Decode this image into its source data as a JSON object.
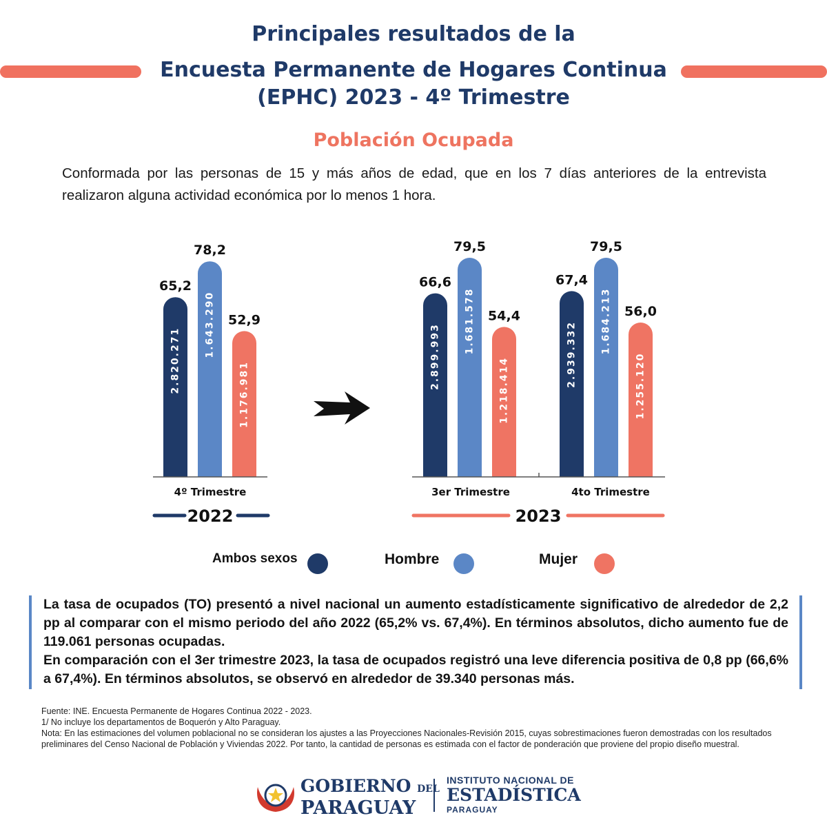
{
  "header": {
    "line1": "Principales resultados de la",
    "line2": "Encuesta Permanente de Hogares Continua",
    "line3": "(EPHC) 2023 - 4º Trimestre",
    "subtitle": "Población Ocupada",
    "intro": "Conformada por las personas de 15 y más años de edad, que en los 7 días anteriores de la entrevista realizaron alguna actividad económica por lo menos 1 hora."
  },
  "colors": {
    "navy": "#1f3a68",
    "blue": "#5b87c6",
    "coral": "#ef7463",
    "title": "#1f3a68",
    "accent": "#ee7460"
  },
  "chart_data": {
    "type": "bar",
    "categories": [
      "4º Trimestre",
      "3er Trimestre",
      "4to Trimestre"
    ],
    "groups": [
      "2022",
      "2023",
      "2023"
    ],
    "series": [
      {
        "name": "Ambos sexos",
        "values": [
          65.2,
          66.6,
          67.4
        ],
        "counts": [
          "2.820.271",
          "2.899.993",
          "2.939.332"
        ],
        "value_labels": [
          "65,2",
          "66,6",
          "67,4"
        ]
      },
      {
        "name": "Hombre",
        "values": [
          78.2,
          79.5,
          79.5
        ],
        "counts": [
          "1.643.290",
          "1.681.578",
          "1.684.213"
        ],
        "value_labels": [
          "78,2",
          "79,5",
          "79,5"
        ]
      },
      {
        "name": "Mujer",
        "values": [
          52.9,
          54.4,
          56.0
        ],
        "counts": [
          "1.176.981",
          "1.218.414",
          "1.255.120"
        ],
        "value_labels": [
          "52,9",
          "54,4",
          "56,0"
        ]
      }
    ],
    "year_labels": [
      "2022",
      "2023"
    ],
    "legend_position": "bottom",
    "grid": false
  },
  "legend": {
    "items": [
      "Ambos sexos",
      "Hombre",
      "Mujer"
    ]
  },
  "summary": {
    "paragraph1": "La tasa de ocupados (TO) presentó a nivel nacional un aumento estadísticamente significativo de alrededor de 2,2 pp al comparar con el mismo periodo del año 2022 (65,2% vs. 67,4%). En términos absolutos, dicho aumento fue de 119.061 personas ocupadas.",
    "paragraph2": "En comparación con el 3er trimestre 2023, la tasa de ocupados registró una leve diferencia positiva de 0,8 pp (66,6% a 67,4%). En términos absolutos, se observó  en alrededor de 39.340 personas más."
  },
  "notes": {
    "source": "Fuente: INE. Encuesta Permanente de Hogares Continua 2022 - 2023.",
    "note1": "1/ No incluye los departamentos de Boquerón y Alto Paraguay.",
    "note2": "Nota: En las estimaciones del volumen poblacional no se consideran los ajustes a las Proyecciones Nacionales-Revisión 2015, cuyas sobrestimaciones fueron demostradas con los resultados preliminares del Censo Nacional de Población y Viviendas 2022. Por tanto, la cantidad de personas es estimada con el factor de ponderación que proviene del propio diseño muestral."
  },
  "footer": {
    "gob_line1": "GOBIERNO",
    "gob_del": "DEL",
    "gob_line2": "PARAGUAY",
    "ine_line1": "INSTITUTO NACIONAL DE",
    "ine_line2": "ESTADÍSTICA",
    "ine_line3": "PARAGUAY"
  }
}
